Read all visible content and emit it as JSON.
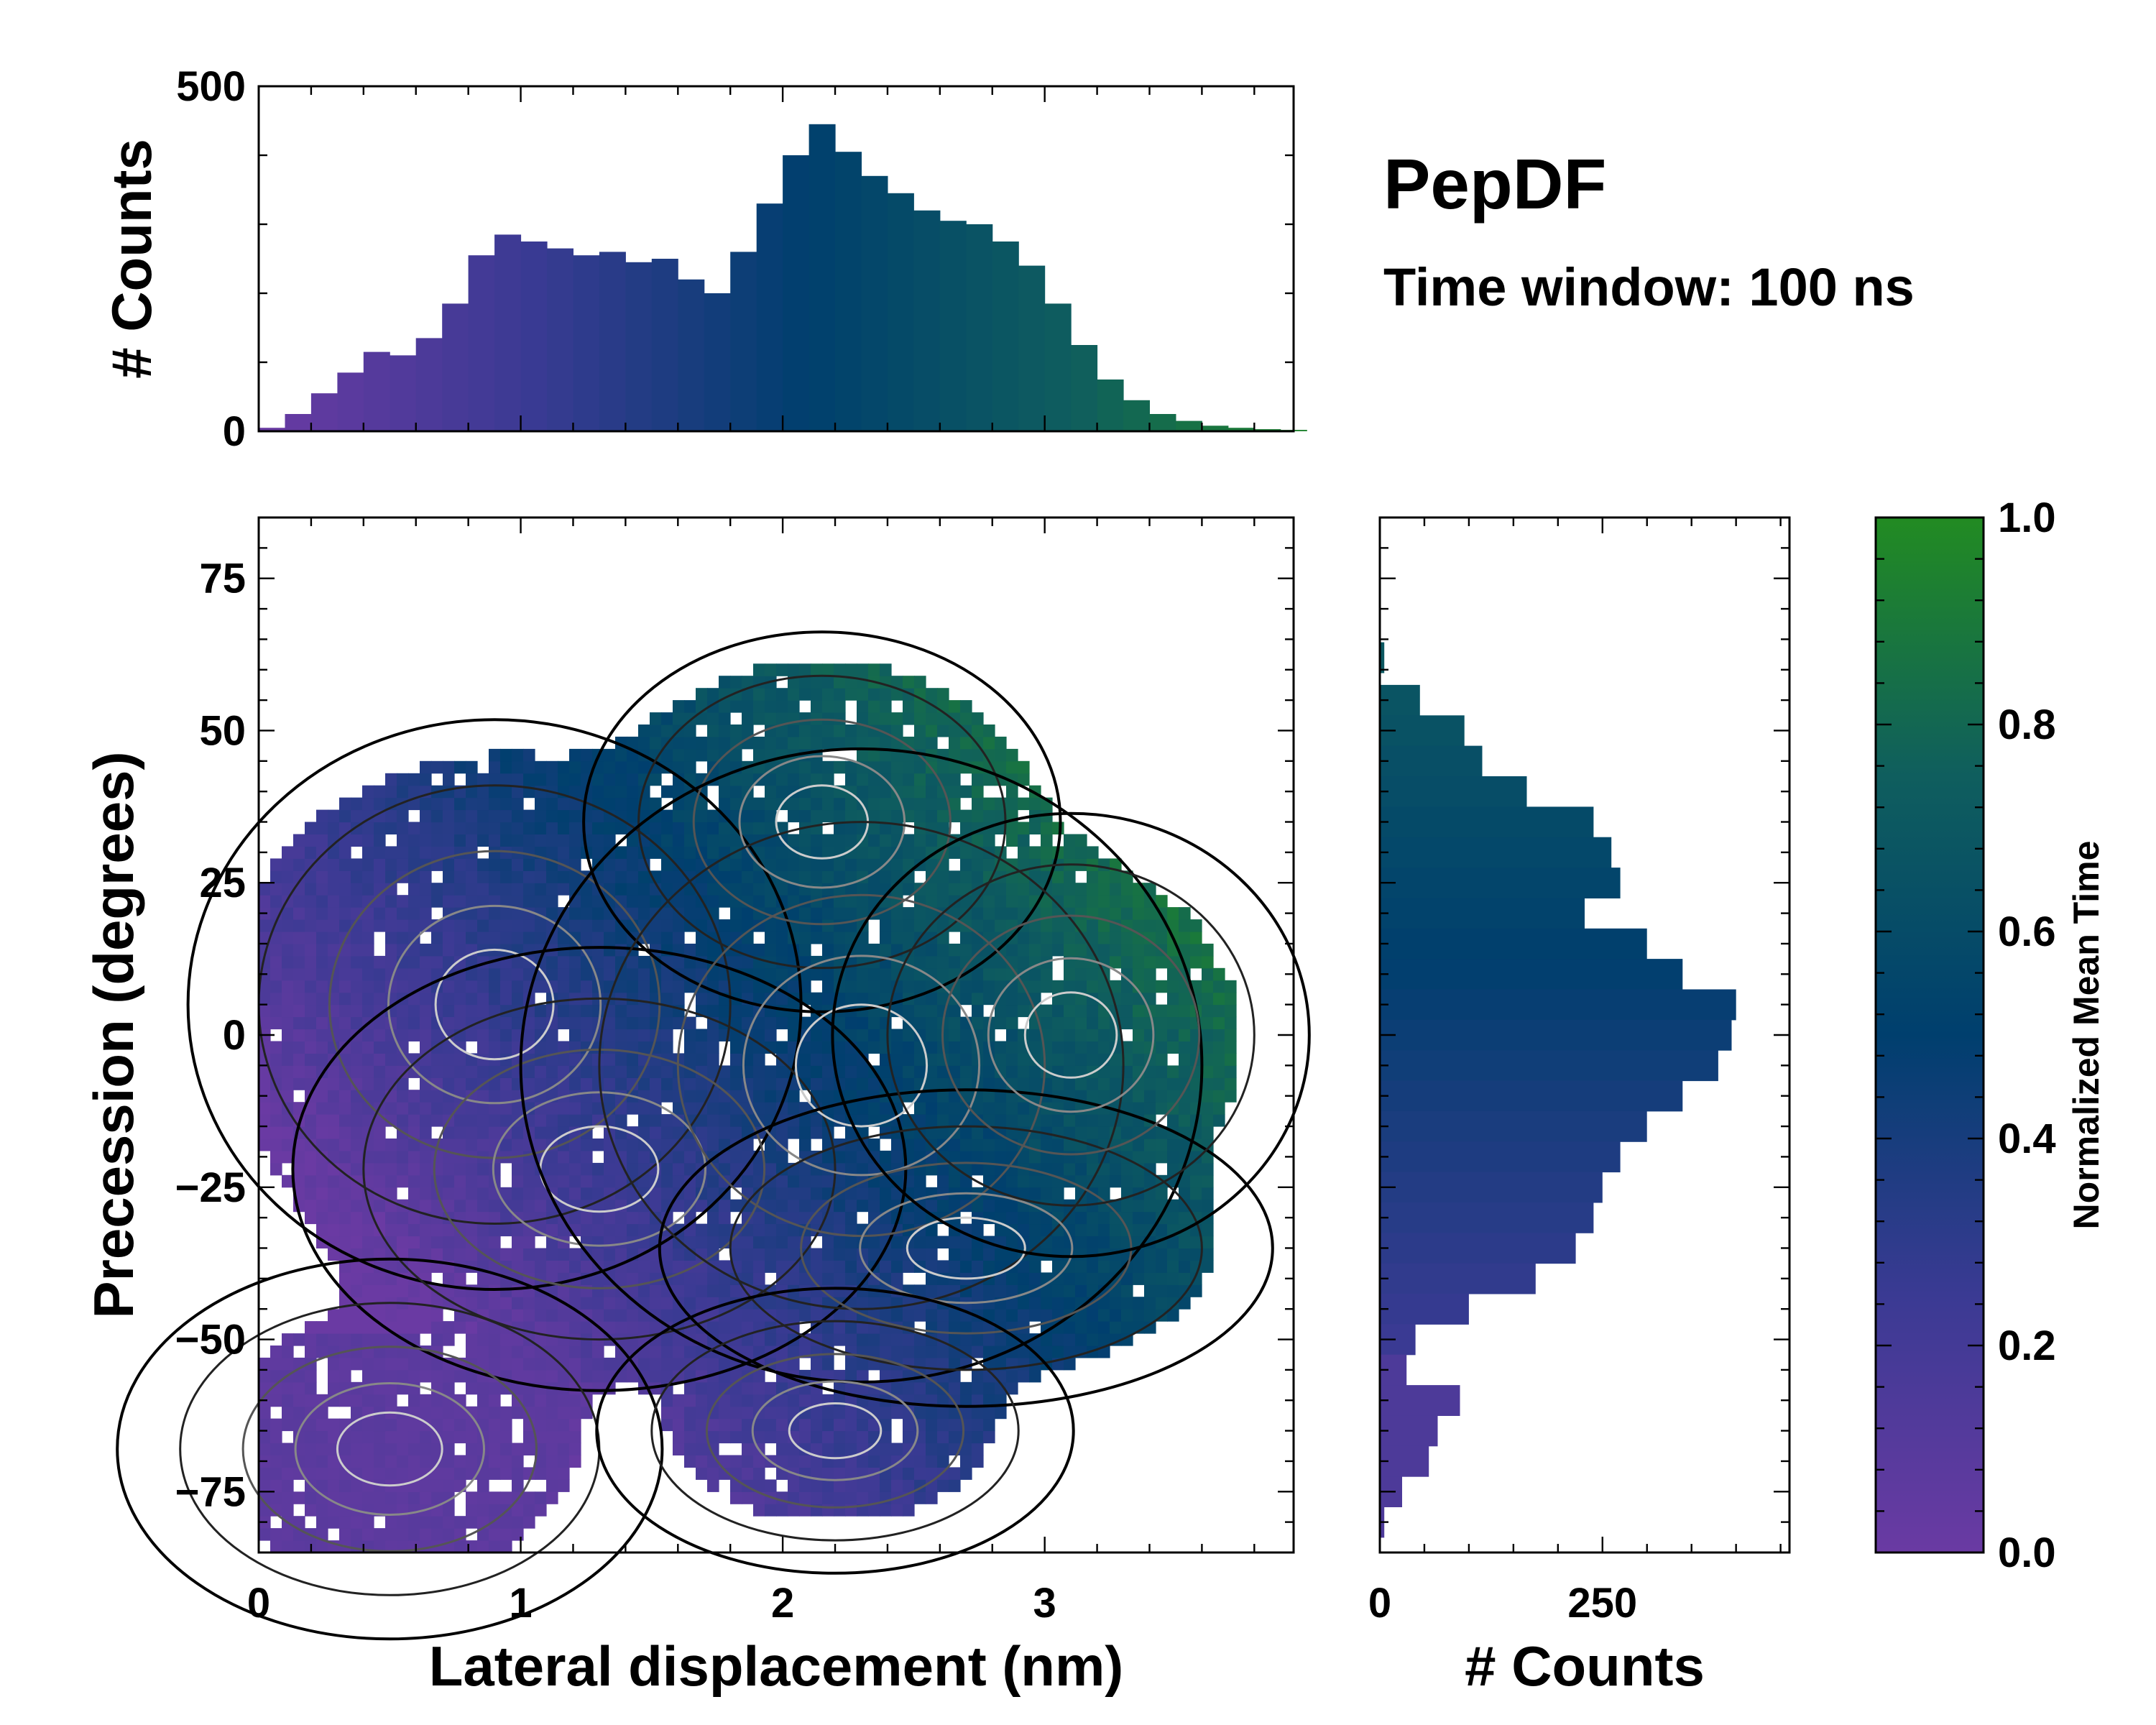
{
  "title": "PepDF",
  "subtitle": "Time window: 100 ns",
  "colors": {
    "cmap": [
      "#6a3aa3",
      "#3a3a93",
      "#003f6e",
      "#0f5e5e",
      "#228b22"
    ],
    "contour": "#000000"
  },
  "chart_data": [
    {
      "type": "heatmap",
      "name": "joint-distribution",
      "xlabel": "Lateral displacement (nm)",
      "ylabel": "Precession (degrees)",
      "xlim": [
        0,
        3.95
      ],
      "ylim": [
        -85,
        85
      ],
      "xticks": [
        0,
        1,
        2,
        3
      ],
      "yticks": [
        -75,
        -50,
        -25,
        0,
        25,
        50,
        75
      ],
      "color_label": "Normalized Mean Time",
      "color_range": [
        0.0,
        1.0
      ],
      "clusters": [
        {
          "x": 0.9,
          "y": 5,
          "sx": 0.45,
          "sy": 18,
          "w": 1.0
        },
        {
          "x": 1.3,
          "y": -22,
          "sx": 0.45,
          "sy": 14,
          "w": 0.9
        },
        {
          "x": 2.15,
          "y": 35,
          "sx": 0.35,
          "sy": 12,
          "w": 0.85
        },
        {
          "x": 2.3,
          "y": -5,
          "sx": 0.5,
          "sy": 20,
          "w": 0.8
        },
        {
          "x": 2.7,
          "y": -35,
          "sx": 0.45,
          "sy": 10,
          "w": 0.6
        },
        {
          "x": 0.5,
          "y": -68,
          "sx": 0.4,
          "sy": 12,
          "w": 0.35
        },
        {
          "x": 2.2,
          "y": -65,
          "sx": 0.35,
          "sy": 9,
          "w": 0.3
        },
        {
          "x": 3.1,
          "y": 0,
          "sx": 0.35,
          "sy": 14,
          "w": 0.35
        }
      ]
    },
    {
      "type": "bar",
      "name": "top-marginal-histogram",
      "ylabel": "# Counts",
      "xlim": [
        0,
        3.95
      ],
      "ylim": [
        0,
        500
      ],
      "yticks": [
        0,
        500
      ],
      "x": [
        0.0,
        0.1,
        0.2,
        0.3,
        0.4,
        0.5,
        0.6,
        0.7,
        0.8,
        0.9,
        1.0,
        1.1,
        1.2,
        1.3,
        1.4,
        1.5,
        1.6,
        1.7,
        1.8,
        1.9,
        2.0,
        2.1,
        2.2,
        2.3,
        2.4,
        2.5,
        2.6,
        2.7,
        2.8,
        2.9,
        3.0,
        3.1,
        3.2,
        3.3,
        3.4,
        3.5,
        3.6,
        3.7,
        3.8,
        3.9
      ],
      "values": [
        5,
        25,
        55,
        85,
        115,
        110,
        135,
        185,
        255,
        285,
        275,
        265,
        255,
        260,
        245,
        250,
        220,
        200,
        260,
        330,
        400,
        445,
        405,
        370,
        345,
        320,
        305,
        300,
        275,
        240,
        185,
        125,
        75,
        45,
        25,
        15,
        8,
        5,
        3,
        2
      ],
      "colors_by": "normalized mean time"
    },
    {
      "type": "bar",
      "orientation": "horizontal",
      "name": "right-marginal-histogram",
      "xlabel": "# Counts",
      "xlim": [
        0,
        460
      ],
      "xticks": [
        0,
        250
      ],
      "ylim": [
        -85,
        85
      ],
      "y": [
        62,
        55,
        50,
        45,
        40,
        35,
        30,
        25,
        20,
        15,
        10,
        5,
        0,
        -5,
        -10,
        -15,
        -20,
        -25,
        -30,
        -35,
        -40,
        -45,
        -50,
        -55,
        -60,
        -65,
        -70,
        -75,
        -80
      ],
      "values": [
        5,
        45,
        95,
        115,
        165,
        240,
        260,
        270,
        230,
        300,
        340,
        400,
        395,
        380,
        340,
        300,
        270,
        250,
        240,
        220,
        175,
        100,
        40,
        30,
        90,
        65,
        55,
        25,
        5
      ],
      "colors_by": "normalized mean time"
    }
  ]
}
